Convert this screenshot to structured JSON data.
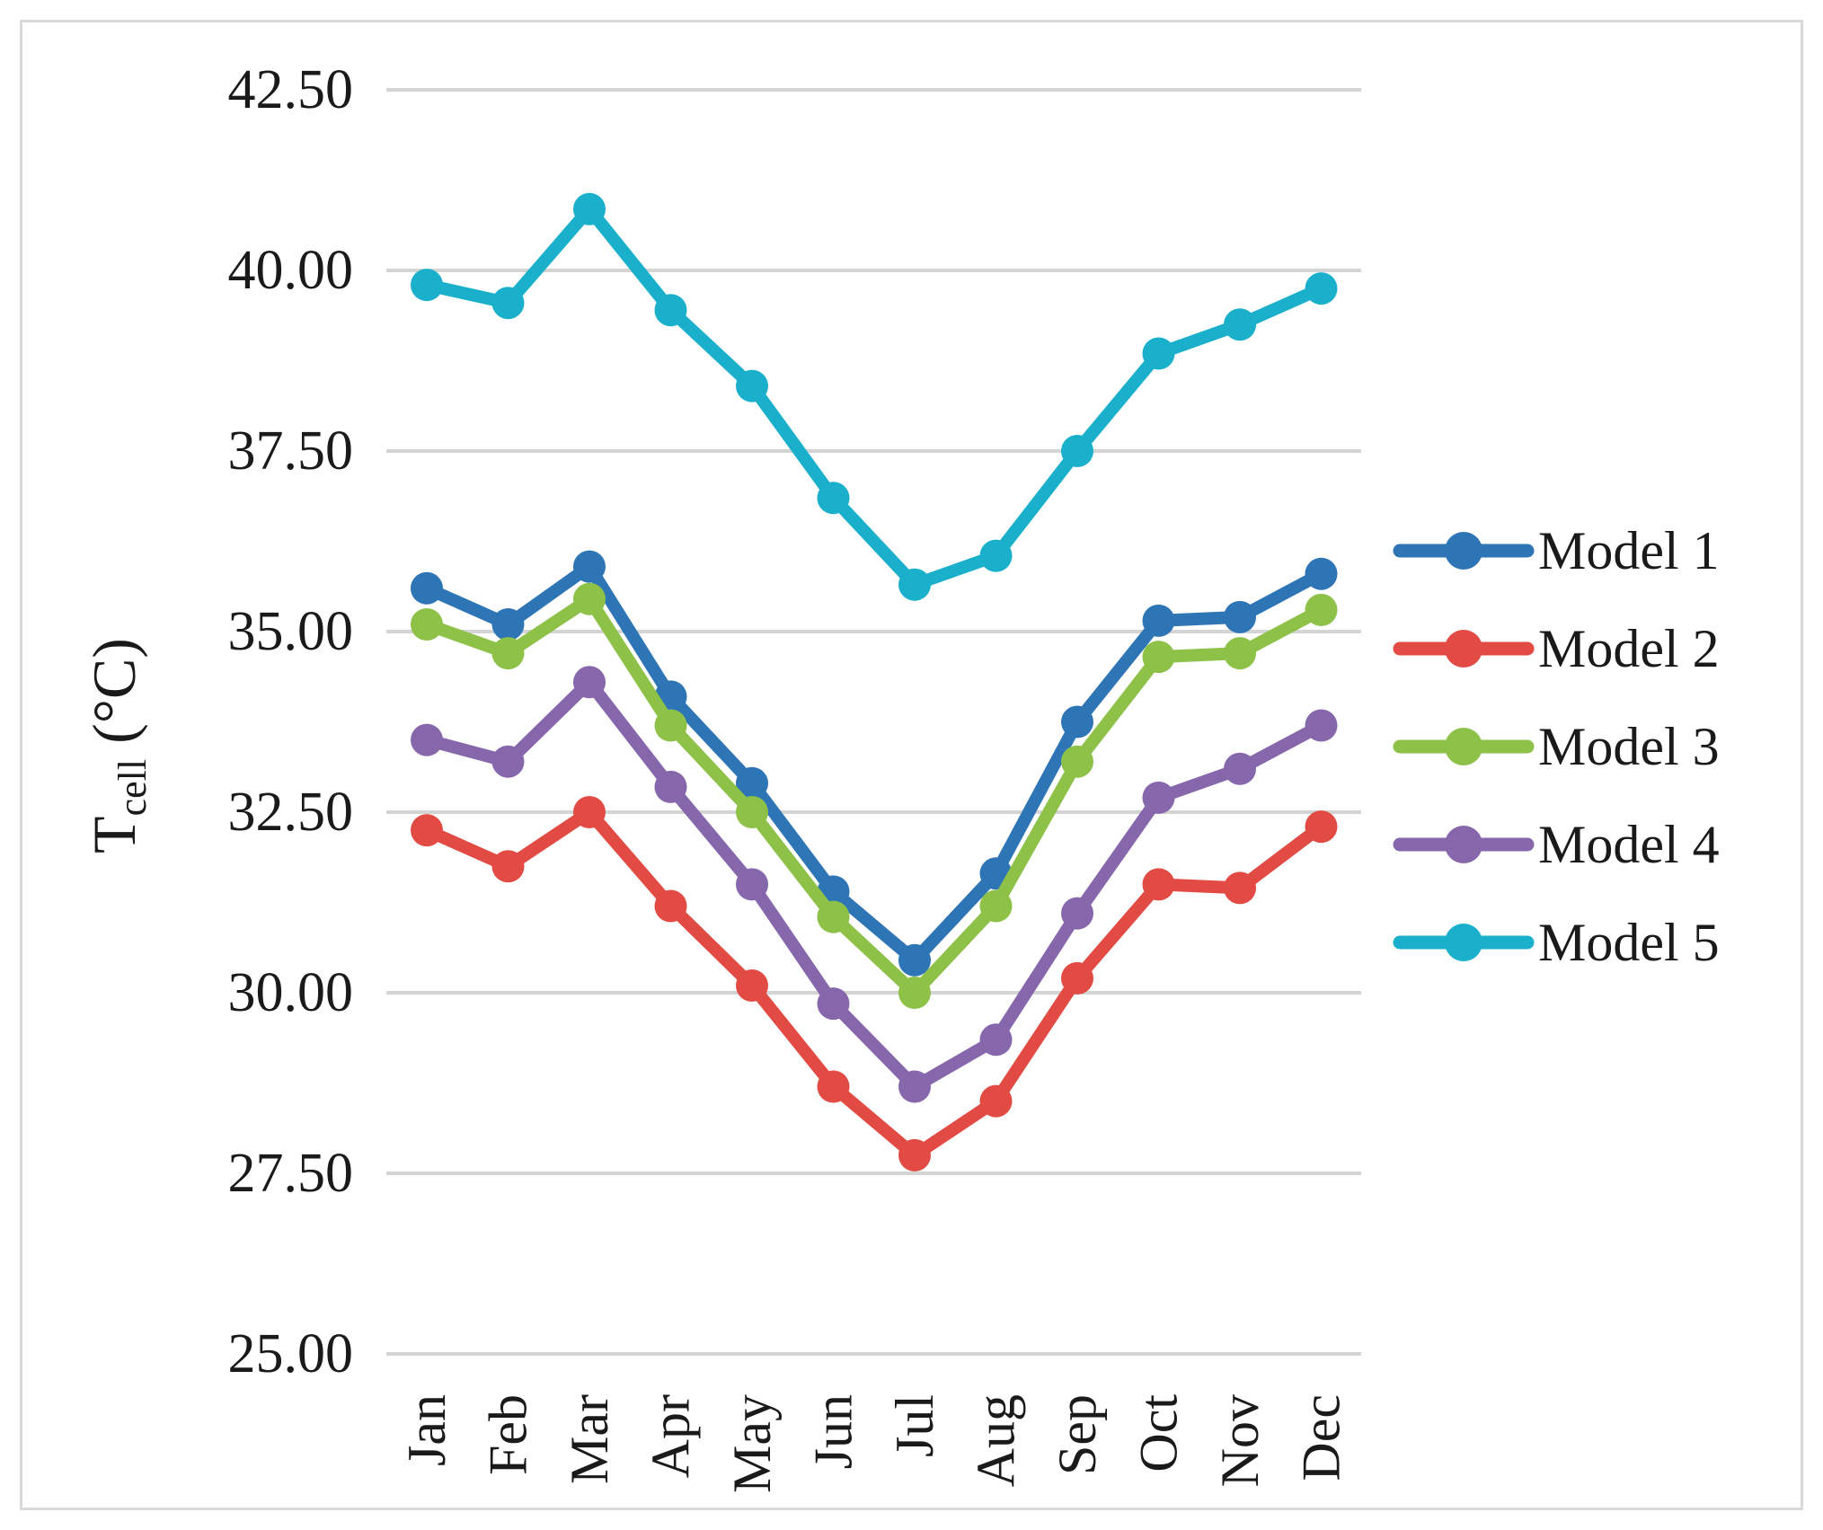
{
  "figure": {
    "background": "#ffffff",
    "frame_border_color": "#d9d9d9"
  },
  "chart_data": {
    "type": "line",
    "title": "",
    "xlabel": "",
    "ylabel": {
      "main": "T",
      "sub": "cell",
      "unit": " (°C)"
    },
    "ylim": [
      25.0,
      42.5
    ],
    "grid": "horizontal",
    "gridline_color": "#d4d4d4",
    "legend_position": "right-middle",
    "y_ticks": [
      {
        "value": 42.5,
        "label": "42.50"
      },
      {
        "value": 40.0,
        "label": "40.00"
      },
      {
        "value": 37.5,
        "label": "37.50"
      },
      {
        "value": 35.0,
        "label": "35.00"
      },
      {
        "value": 32.5,
        "label": "32.50"
      },
      {
        "value": 30.0,
        "label": "30.00"
      },
      {
        "value": 27.5,
        "label": "27.50"
      },
      {
        "value": 25.0,
        "label": "25.00"
      }
    ],
    "categories": [
      "Jan",
      "Feb",
      "Mar",
      "Apr",
      "May",
      "Jun",
      "Jul",
      "Aug",
      "Sep",
      "Oct",
      "Nov",
      "Dec"
    ],
    "series": [
      {
        "name": "Model 1",
        "color": "#2e75b6",
        "values": [
          35.6,
          35.1,
          35.9,
          34.1,
          32.9,
          31.4,
          30.45,
          31.65,
          33.75,
          35.15,
          35.2,
          35.8
        ]
      },
      {
        "name": "Model 2",
        "color": "#e14b44",
        "values": [
          32.25,
          31.75,
          32.5,
          31.2,
          30.1,
          28.7,
          27.75,
          28.5,
          30.2,
          31.5,
          31.45,
          32.3
        ]
      },
      {
        "name": "Model 3",
        "color": "#8dc148",
        "values": [
          35.1,
          34.7,
          35.45,
          33.7,
          32.5,
          31.05,
          30.0,
          31.2,
          33.2,
          34.65,
          34.7,
          35.3
        ]
      },
      {
        "name": "Model 4",
        "color": "#8767ab",
        "values": [
          33.5,
          33.2,
          34.3,
          32.85,
          31.5,
          29.85,
          28.7,
          29.35,
          31.1,
          32.7,
          33.1,
          33.7
        ]
      },
      {
        "name": "Model 5",
        "color": "#1ab0cc",
        "values": [
          39.8,
          39.55,
          40.85,
          39.45,
          38.4,
          36.85,
          35.65,
          36.05,
          37.5,
          38.85,
          39.25,
          39.75
        ]
      }
    ]
  }
}
